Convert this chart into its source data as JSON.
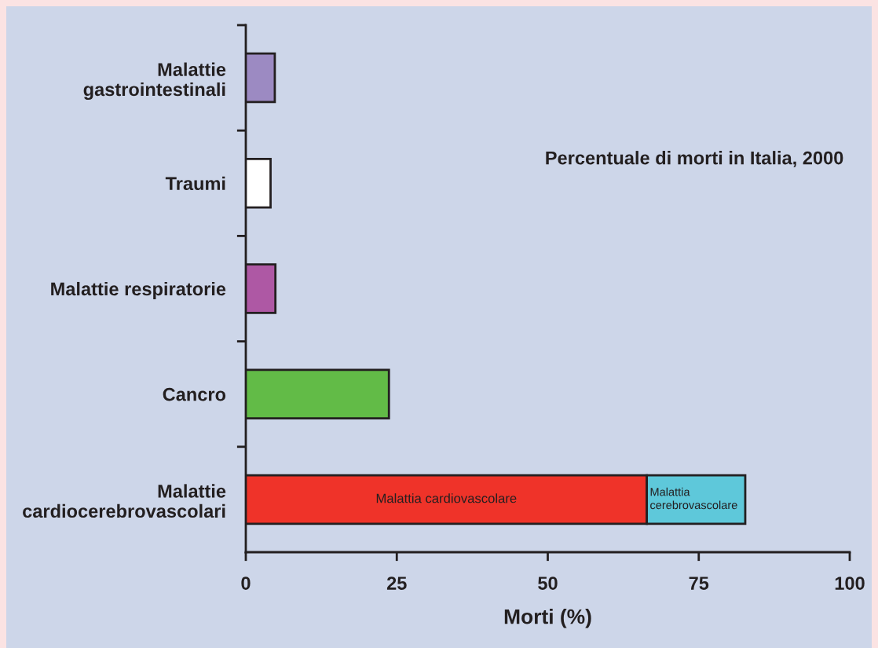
{
  "chart_data": {
    "type": "bar",
    "orientation": "horizontal",
    "stacked": true,
    "title": "Percentuale di morti in Italia, 2000",
    "xlabel": "Morti (%)",
    "categories": [
      "Malattie\ngastrointestinali",
      "Traumi",
      "Malattie respiratorie",
      "Cancro",
      "Malattie\ncardiocerebrovascolari"
    ],
    "series": [
      {
        "name": "Malattia cardiovascolare",
        "colors": [
          "#9c8ac2",
          "#ffffff",
          "#ae58a4",
          "#62bb47",
          "#ef3329"
        ],
        "values": [
          4.8,
          4.1,
          4.9,
          23.7,
          66.4
        ]
      },
      {
        "name": "Malattia cerebrovascolare",
        "color": "#5ec8da",
        "values": [
          null,
          null,
          null,
          null,
          16.3
        ]
      }
    ],
    "xlim": [
      0,
      100
    ],
    "xticks": [
      0,
      25,
      50,
      75,
      100
    ],
    "grid": false,
    "legend": false
  }
}
